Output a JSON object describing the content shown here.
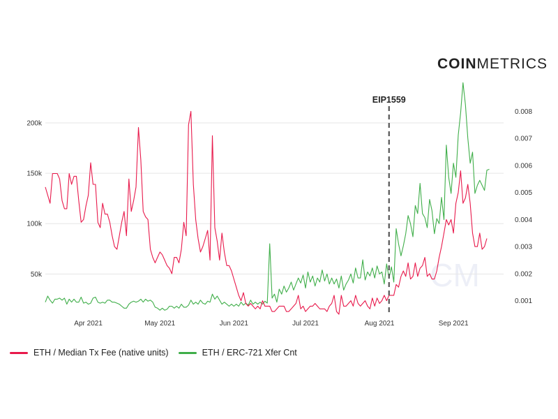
{
  "brand": {
    "bold": "COIN",
    "light": "METRICS"
  },
  "watermark": "CM",
  "colors": {
    "fee": "#e8194b",
    "nft": "#3fae49",
    "grid": "#e6e6e6",
    "vline": "#555555"
  },
  "legend": [
    {
      "label": "ETH / Median Tx Fee (native units)",
      "color": "#e8194b"
    },
    {
      "label": "ETH / ERC-721 Xfer Cnt",
      "color": "#3fae49"
    }
  ],
  "chart_data": {
    "type": "line",
    "title": "",
    "x_range": [
      "2021-03-14",
      "2021-09-22"
    ],
    "x_ticks": [
      "Apr 2021",
      "May 2021",
      "Jun 2021",
      "Jul 2021",
      "Aug 2021",
      "Sep 2021"
    ],
    "y_left": {
      "ticks": [
        "50k",
        "100k",
        "150k",
        "200k"
      ],
      "range": [
        10000,
        225000
      ],
      "grid": true
    },
    "y_right": {
      "ticks": [
        "0.001",
        "0.002",
        "0.003",
        "0.004",
        "0.005",
        "0.006",
        "0.007",
        "0.008"
      ],
      "range": [
        0.0005,
        0.0085
      ]
    },
    "annotation": {
      "label": "EIP1559",
      "date": "2021-08-05",
      "style": "dashed vertical line"
    },
    "series": [
      {
        "name": "ETH / Median Tx Fee (native units)",
        "axis": "right",
        "x_start": "2021-03-14",
        "step_days": 1,
        "values": [
          0.0052,
          0.0049,
          0.0046,
          0.0057,
          0.0057,
          0.0057,
          0.0055,
          0.0047,
          0.0044,
          0.0044,
          0.0057,
          0.0053,
          0.0056,
          0.0056,
          0.0047,
          0.0039,
          0.004,
          0.0045,
          0.0049,
          0.0061,
          0.0053,
          0.0053,
          0.0039,
          0.0037,
          0.0046,
          0.0042,
          0.0042,
          0.0039,
          0.0034,
          0.003,
          0.0029,
          0.0034,
          0.0039,
          0.0043,
          0.0034,
          0.0055,
          0.0043,
          0.0047,
          0.0052,
          0.0074,
          0.0062,
          0.0043,
          0.0041,
          0.004,
          0.0029,
          0.0026,
          0.0024,
          0.0026,
          0.0028,
          0.0027,
          0.0025,
          0.0023,
          0.0022,
          0.002,
          0.0026,
          0.0026,
          0.0024,
          0.0029,
          0.0039,
          0.0034,
          0.0075,
          0.008,
          0.0053,
          0.004,
          0.0033,
          0.0028,
          0.003,
          0.0033,
          0.0036,
          0.0025,
          0.0071,
          0.0037,
          0.0032,
          0.0025,
          0.0035,
          0.0028,
          0.0023,
          0.0023,
          0.0021,
          0.0018,
          0.0015,
          0.0012,
          0.001,
          0.0013,
          0.0009,
          0.0008,
          0.0009,
          0.0008,
          0.0007,
          0.0008,
          0.0007,
          0.001,
          0.0008,
          0.0008,
          0.0008,
          0.0006,
          0.0006,
          0.0007,
          0.0008,
          0.0008,
          0.0008,
          0.0006,
          0.0006,
          0.0007,
          0.0008,
          0.0009,
          0.0012,
          0.0007,
          0.0008,
          0.0006,
          0.0007,
          0.0008,
          0.0008,
          0.0009,
          0.0008,
          0.0007,
          0.0007,
          0.0007,
          0.0006,
          0.0008,
          0.0009,
          0.0012,
          0.0006,
          0.0005,
          0.0012,
          0.0008,
          0.0008,
          0.0009,
          0.001,
          0.0008,
          0.0012,
          0.0009,
          0.0008,
          0.0009,
          0.001,
          0.0008,
          0.0007,
          0.0011,
          0.0008,
          0.0011,
          0.0009,
          0.001,
          0.0012,
          0.001,
          0.0012,
          0.0012,
          0.0012,
          0.0016,
          0.0015,
          0.0019,
          0.0021,
          0.0019,
          0.0024,
          0.0018,
          0.0019,
          0.0024,
          0.0019,
          0.0022,
          0.0023,
          0.0026,
          0.0019,
          0.002,
          0.0018,
          0.0018,
          0.0021,
          0.0026,
          0.003,
          0.0035,
          0.004,
          0.0038,
          0.004,
          0.0035,
          0.0046,
          0.005,
          0.0058,
          0.0046,
          0.0048,
          0.0053,
          0.0046,
          0.0035,
          0.003,
          0.003,
          0.0035,
          0.0029,
          0.003,
          0.0033
        ]
      },
      {
        "name": "ETH / ERC-721 Xfer Cnt",
        "axis": "left",
        "x_start": "2021-03-14",
        "step_days": 1,
        "values": [
          22000,
          28000,
          24000,
          21000,
          25000,
          25000,
          26000,
          24000,
          26000,
          20000,
          25000,
          22000,
          25000,
          22000,
          22000,
          27000,
          21000,
          22000,
          20000,
          21000,
          26000,
          27000,
          22000,
          21000,
          22000,
          21000,
          24000,
          24000,
          22000,
          22000,
          21000,
          20000,
          18000,
          16000,
          16000,
          20000,
          22000,
          23000,
          22000,
          23000,
          25000,
          22000,
          25000,
          23000,
          24000,
          22000,
          17000,
          16000,
          14000,
          16000,
          14000,
          15000,
          18000,
          18000,
          16000,
          18000,
          16000,
          20000,
          17000,
          17000,
          19000,
          24000,
          20000,
          22000,
          20000,
          24000,
          21000,
          20000,
          23000,
          22000,
          30000,
          25000,
          28000,
          24000,
          20000,
          22000,
          20000,
          18000,
          20000,
          18000,
          20000,
          18000,
          22000,
          19000,
          21000,
          19000,
          24000,
          20000,
          22000,
          20000,
          22000,
          20000,
          23000,
          21000,
          80000,
          26000,
          30000,
          22000,
          35000,
          30000,
          38000,
          32000,
          36000,
          42000,
          34000,
          40000,
          46000,
          41000,
          49000,
          36000,
          52000,
          42000,
          48000,
          38000,
          46000,
          42000,
          54000,
          43000,
          50000,
          40000,
          46000,
          40000,
          45000,
          36000,
          48000,
          34000,
          40000,
          44000,
          50000,
          41000,
          56000,
          46000,
          46000,
          64000,
          44000,
          52000,
          48000,
          56000,
          46000,
          58000,
          50000,
          52000,
          40000,
          60000,
          46000,
          57000,
          42000,
          95000,
          80000,
          68000,
          78000,
          90000,
          108000,
          100000,
          87000,
          118000,
          110000,
          140000,
          110000,
          106000,
          96000,
          124000,
          113000,
          90000,
          105000,
          100000,
          126000,
          104000,
          178000,
          146000,
          130000,
          160000,
          146000,
          188000,
          210000,
          240000,
          218000,
          185000,
          160000,
          171000,
          130000,
          138000,
          143000,
          138000,
          133000,
          153000,
          154000
        ]
      }
    ]
  }
}
